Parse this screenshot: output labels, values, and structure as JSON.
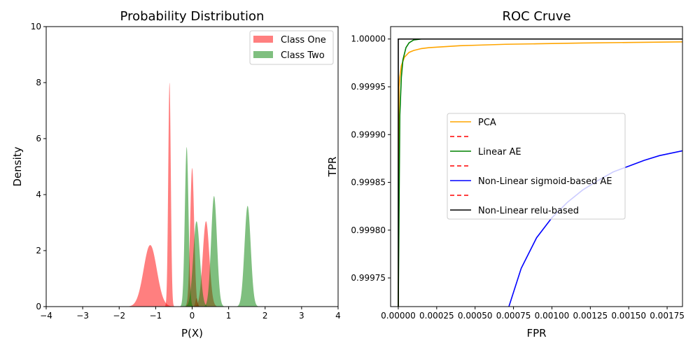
{
  "chart_data": [
    {
      "type": "area",
      "title": "Probability Distribution",
      "xlabel": "P(X)",
      "ylabel": "Density",
      "xlim": [
        -4,
        4
      ],
      "ylim": [
        0,
        10
      ],
      "xticks": [
        -4,
        -3,
        -2,
        -1,
        0,
        1,
        2,
        3,
        4
      ],
      "yticks": [
        0,
        2,
        4,
        6,
        8,
        10
      ],
      "legend_position": "top-right",
      "series": [
        {
          "name": "Class One",
          "color": "#ff0000",
          "opacity": 0.5,
          "peaks": [
            {
              "mu": -1.15,
              "sigma": 0.18,
              "height": 2.2
            },
            {
              "mu": -0.62,
              "sigma": 0.035,
              "height": 8.0
            },
            {
              "mu": 0.0,
              "sigma": 0.055,
              "height": 4.95
            },
            {
              "mu": 0.38,
              "sigma": 0.09,
              "height": 3.05
            },
            {
              "mu": 0.12,
              "sigma": 0.03,
              "height": 0.3
            }
          ]
        },
        {
          "name": "Class Two",
          "color": "#008000",
          "opacity": 0.5,
          "peaks": [
            {
              "mu": -0.15,
              "sigma": 0.05,
              "height": 5.7
            },
            {
              "mu": 0.12,
              "sigma": 0.09,
              "height": 3.05
            },
            {
              "mu": 0.6,
              "sigma": 0.08,
              "height": 3.95
            },
            {
              "mu": 1.52,
              "sigma": 0.085,
              "height": 3.6
            }
          ]
        }
      ]
    },
    {
      "type": "line",
      "title": "ROC Cruve",
      "xlabel": "FPR",
      "ylabel": "TPR",
      "xlim": [
        -5e-05,
        0.00185
      ],
      "ylim": [
        0.99972,
        1.000013
      ],
      "xticks": [
        0.0,
        0.00025,
        0.0005,
        0.00075,
        0.001,
        0.00125,
        0.0015,
        0.00175
      ],
      "xtick_labels": [
        "0.00000",
        "0.00025",
        "0.00050",
        "0.00075",
        "0.00100",
        "0.00125",
        "0.00150",
        "0.00175"
      ],
      "yticks": [
        0.99975,
        0.9998,
        0.99985,
        0.9999,
        0.99995,
        1.0
      ],
      "ytick_labels": [
        "0.99975",
        "0.99980",
        "0.99985",
        "0.99990",
        "0.99995",
        "1.00000"
      ],
      "legend_position": "center",
      "legend": [
        {
          "label": "PCA",
          "color": "#ffa500",
          "dash": false
        },
        {
          "label": "",
          "color": "#ff0000",
          "dash": true
        },
        {
          "label": "Linear AE",
          "color": "#008000",
          "dash": false
        },
        {
          "label": "",
          "color": "#ff0000",
          "dash": true
        },
        {
          "label": "Non-Linear sigmoid-based AE",
          "color": "#0000ff",
          "dash": false
        },
        {
          "label": "",
          "color": "#ff0000",
          "dash": true
        },
        {
          "label": "Non-Linear relu-based",
          "color": "#000000",
          "dash": false
        }
      ],
      "series": [
        {
          "name": "PCA",
          "color": "#ffa500",
          "x": [
            0.0,
            5e-06,
            1e-05,
            2e-05,
            4e-05,
            7e-05,
            0.0001,
            0.00015,
            0.0002,
            0.0003,
            0.0004,
            0.0005,
            0.0007,
            0.0009,
            0.0012,
            0.0015,
            0.00185
          ],
          "y": [
            0.99972,
            0.99995,
            0.99996,
            0.999972,
            0.999981,
            0.999986,
            0.999988,
            0.99999,
            0.999991,
            0.999992,
            0.999993,
            0.9999935,
            0.9999945,
            0.999995,
            0.9999958,
            0.9999964,
            0.999997
          ]
        },
        {
          "name": "Linear AE",
          "color": "#008000",
          "x": [
            0.0,
            5e-06,
            1e-05,
            2e-05,
            3e-05,
            5e-05,
            7e-05,
            0.0001,
            0.00015,
            0.0002,
            0.0004,
            0.00185
          ],
          "y": [
            0.99972,
            0.99982,
            0.99992,
            0.99996,
            0.999978,
            0.999991,
            0.999996,
            0.999999,
            1.0,
            1.0,
            1.0,
            1.0
          ]
        },
        {
          "name": "Non-Linear sigmoid-based AE",
          "color": "#0000ff",
          "x": [
            0.00072,
            0.0008,
            0.0009,
            0.001,
            0.0011,
            0.0012,
            0.0013,
            0.0014,
            0.0015,
            0.0016,
            0.0017,
            0.00185
          ],
          "y": [
            0.99972,
            0.99976,
            0.999792,
            0.999813,
            0.999829,
            0.999842,
            0.999852,
            0.999861,
            0.999867,
            0.999873,
            0.999878,
            0.999883
          ]
        },
        {
          "name": "Non-Linear relu-based",
          "color": "#000000",
          "x": [
            0.0,
            0.0,
            0.00185
          ],
          "y": [
            0.99972,
            1.0,
            1.0
          ]
        }
      ]
    }
  ]
}
